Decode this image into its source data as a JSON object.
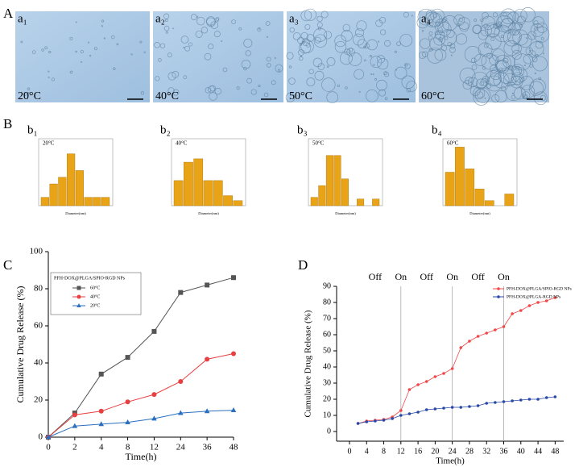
{
  "panel_labels": [
    "A",
    "B",
    "C",
    "D"
  ],
  "images": [
    {
      "label": "a₁",
      "temperature": "20°C"
    },
    {
      "label": "a₂",
      "temperature": "40°C"
    },
    {
      "label": "a₃",
      "temperature": "50°C"
    },
    {
      "label": "a₄",
      "temperature": "60°C"
    }
  ],
  "chart_data": [
    {
      "type": "histogram",
      "label": "b₁",
      "annotation": "20°C",
      "xlabel": "Diameter(nm)",
      "color": "#e8a317",
      "values": [
        5,
        13,
        17,
        31,
        21,
        5,
        5,
        5
      ],
      "ylim": [
        0,
        40
      ]
    },
    {
      "type": "histogram",
      "label": "b₂",
      "annotation": "40°C",
      "xlabel": "Diameter(nm)",
      "color": "#e8a317",
      "values": [
        15,
        26,
        28,
        15,
        15,
        6,
        3
      ],
      "ylim": [
        0,
        40
      ]
    },
    {
      "type": "histogram",
      "label": "b₃",
      "annotation": "50°C",
      "xlabel": "Diameter(nm)",
      "color": "#e8a317",
      "values": [
        5,
        12,
        30,
        30,
        16,
        0,
        4,
        0,
        4
      ],
      "ylim": [
        0,
        40
      ]
    },
    {
      "type": "histogram",
      "label": "b₄",
      "annotation": "60°C",
      "xlabel": "Diameter(nm)",
      "color": "#e8a317",
      "values": [
        20,
        35,
        22,
        10,
        3,
        0,
        7
      ],
      "ylim": [
        0,
        40
      ]
    },
    {
      "type": "line",
      "xlabel": "Time(h)",
      "ylabel": "Cumulative Drug Release (%)",
      "legend_title": "PFH-DOX@PLGA/SPIO-RGD NPs",
      "categories": [
        "0",
        "2",
        "4",
        "8",
        "12",
        "24",
        "36",
        "48"
      ],
      "series": [
        {
          "name": "60°C",
          "color": "#555555",
          "marker": "square",
          "values": [
            0,
            13,
            34,
            43,
            57,
            78,
            82,
            86
          ]
        },
        {
          "name": "40°C",
          "color": "#e84040",
          "marker": "circle",
          "values": [
            0,
            12,
            14,
            19,
            23,
            30,
            42,
            45
          ]
        },
        {
          "name": "20°C",
          "color": "#2a6fc0",
          "marker": "triangle",
          "values": [
            0,
            6,
            7,
            8,
            10,
            13,
            14,
            14.5
          ]
        }
      ],
      "ylim": [
        0,
        100
      ],
      "yticks": [
        0,
        20,
        40,
        60,
        80,
        100
      ]
    },
    {
      "type": "scatterline",
      "xlabel": "Time(h)",
      "ylabel": "Cumulative Drug Release (%)",
      "x": [
        2,
        4,
        6,
        8,
        10,
        12,
        14,
        16,
        18,
        20,
        22,
        24,
        26,
        28,
        30,
        32,
        34,
        36,
        38,
        40,
        42,
        44,
        46,
        48
      ],
      "series": [
        {
          "name": "PFH-DOX@PLGA/SPIO-RGD NPs",
          "color": "#f04848",
          "values": [
            5,
            6.5,
            7,
            7.5,
            9,
            13,
            26,
            29,
            31,
            34,
            36,
            39,
            52,
            56,
            59,
            61,
            63,
            65,
            73,
            75,
            78,
            80,
            81,
            83
          ]
        },
        {
          "name": "PFH-DOX@PLGA-RGD NPs",
          "color": "#2848a8",
          "values": [
            5,
            6,
            6.5,
            7,
            8,
            10,
            11,
            12,
            13.5,
            14,
            14.5,
            15,
            15,
            15.5,
            16,
            17.5,
            18,
            18.5,
            19,
            19.5,
            20,
            20,
            21,
            21.5
          ]
        }
      ],
      "vlines": [
        12,
        24,
        36
      ],
      "annotations": [
        {
          "text": "Off",
          "x": 6,
          "color": "#2e8b2e"
        },
        {
          "text": "On",
          "x": 12,
          "color": "#d42020"
        },
        {
          "text": "Off",
          "x": 18,
          "color": "#2e8b2e"
        },
        {
          "text": "On",
          "x": 24,
          "color": "#d42020"
        },
        {
          "text": "Off",
          "x": 30,
          "color": "#2e8b2e"
        },
        {
          "text": "On",
          "x": 36,
          "color": "#d42020"
        }
      ],
      "xlim": [
        -3,
        50
      ],
      "xticks": [
        0,
        4,
        8,
        12,
        16,
        20,
        24,
        28,
        32,
        36,
        40,
        44,
        48
      ],
      "ylim": [
        -6,
        90
      ],
      "yticks": [
        0,
        10,
        20,
        30,
        40,
        50,
        60,
        70,
        80,
        90
      ]
    }
  ]
}
